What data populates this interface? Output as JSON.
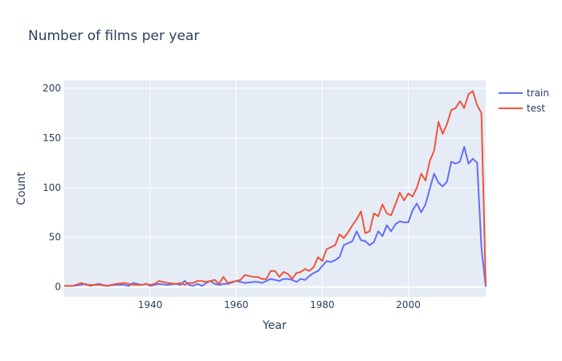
{
  "chart_data": {
    "type": "line",
    "title": "Number of films per year",
    "xlabel": "Year",
    "ylabel": "Count",
    "xlim": [
      1920,
      2018
    ],
    "ylim": [
      -10,
      208
    ],
    "x_ticks": [
      1940,
      1960,
      1980,
      2000
    ],
    "y_ticks": [
      0,
      50,
      100,
      150,
      200
    ],
    "grid": true,
    "legend": "top-right",
    "series": [
      {
        "name": "train",
        "color": "#636efa",
        "x": [
          1920,
          1922,
          1924,
          1925,
          1926,
          1928,
          1930,
          1932,
          1934,
          1935,
          1936,
          1938,
          1939,
          1940,
          1942,
          1944,
          1946,
          1947,
          1948,
          1949,
          1950,
          1951,
          1952,
          1953,
          1954,
          1955,
          1956,
          1957,
          1958,
          1960,
          1961,
          1962,
          1964,
          1965,
          1966,
          1967,
          1968,
          1969,
          1970,
          1971,
          1972,
          1973,
          1974,
          1975,
          1976,
          1977,
          1978,
          1979,
          1980,
          1981,
          1982,
          1983,
          1984,
          1985,
          1986,
          1987,
          1988,
          1989,
          1990,
          1991,
          1992,
          1993,
          1994,
          1995,
          1996,
          1997,
          1998,
          1999,
          2000,
          2001,
          2002,
          2003,
          2004,
          2005,
          2006,
          2007,
          2008,
          2009,
          2010,
          2011,
          2012,
          2013,
          2014,
          2015,
          2016,
          2017,
          2018
        ],
        "values": [
          1,
          1,
          2,
          3,
          1,
          3,
          1,
          2,
          2,
          1,
          4,
          2,
          3,
          1,
          3,
          2,
          3,
          2,
          6,
          2,
          1,
          3,
          1,
          4,
          6,
          3,
          2,
          3,
          3,
          6,
          5,
          4,
          5,
          5,
          4,
          6,
          8,
          7,
          6,
          8,
          8,
          7,
          5,
          8,
          7,
          11,
          14,
          16,
          21,
          26,
          25,
          27,
          30,
          42,
          44,
          46,
          56,
          47,
          46,
          42,
          45,
          56,
          51,
          62,
          56,
          63,
          66,
          65,
          65,
          77,
          84,
          75,
          83,
          99,
          114,
          105,
          101,
          106,
          126,
          124,
          126,
          141,
          124,
          129,
          125,
          40,
          0
        ]
      },
      {
        "name": "test",
        "color": "#ef553b",
        "x": [
          1920,
          1922,
          1924,
          1925,
          1926,
          1928,
          1930,
          1932,
          1934,
          1935,
          1936,
          1938,
          1939,
          1940,
          1941,
          1942,
          1944,
          1946,
          1947,
          1948,
          1949,
          1950,
          1951,
          1952,
          1953,
          1954,
          1955,
          1956,
          1957,
          1958,
          1960,
          1961,
          1962,
          1964,
          1965,
          1966,
          1967,
          1968,
          1969,
          1970,
          1971,
          1972,
          1973,
          1974,
          1975,
          1976,
          1977,
          1978,
          1979,
          1980,
          1981,
          1982,
          1983,
          1984,
          1985,
          1986,
          1987,
          1988,
          1989,
          1990,
          1991,
          1992,
          1993,
          1994,
          1995,
          1996,
          1997,
          1998,
          1999,
          2000,
          2001,
          2002,
          2003,
          2004,
          2005,
          2006,
          2007,
          2008,
          2009,
          2010,
          2011,
          2012,
          2013,
          2014,
          2015,
          2016,
          2017,
          2018
        ],
        "values": [
          1,
          1,
          4,
          2,
          2,
          2,
          1,
          3,
          4,
          3,
          2,
          2,
          3,
          2,
          3,
          6,
          4,
          3,
          4,
          2,
          4,
          4,
          6,
          6,
          5,
          6,
          7,
          3,
          10,
          4,
          6,
          7,
          12,
          10,
          10,
          8,
          8,
          16,
          16,
          10,
          15,
          13,
          8,
          14,
          15,
          18,
          16,
          20,
          30,
          26,
          38,
          40,
          42,
          53,
          49,
          55,
          62,
          68,
          76,
          54,
          56,
          74,
          71,
          83,
          74,
          72,
          83,
          95,
          87,
          94,
          91,
          100,
          114,
          107,
          127,
          137,
          166,
          154,
          164,
          178,
          180,
          187,
          180,
          194,
          197,
          183,
          175,
          2
        ]
      }
    ]
  }
}
